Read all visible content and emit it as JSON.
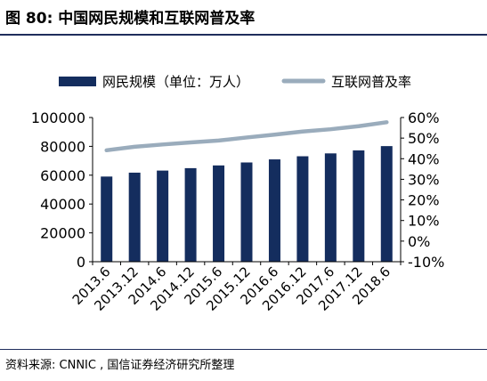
{
  "figure_title": "图 80:  中国网民规模和互联网普及率",
  "source": "资料来源: CNNIC  , 国信证券经济研究所整理",
  "colors": {
    "bar": "#142d5e",
    "line": "#9aacbc",
    "rule": "#1f2d5c"
  },
  "chart_data": {
    "type": "bar",
    "categories": [
      "2013.6",
      "2013.12",
      "2014.6",
      "2014.12",
      "2015.6",
      "2015.12",
      "2016.6",
      "2016.12",
      "2017.6",
      "2017.12",
      "2018.6"
    ],
    "series": [
      {
        "name": "网民规模（单位：万人）",
        "type": "bar",
        "axis": "left",
        "values": [
          59056,
          61758,
          63200,
          64875,
          66769,
          68826,
          70958,
          73125,
          75116,
          77198,
          80166
        ]
      },
      {
        "name": "互联网普及率",
        "type": "line",
        "axis": "right",
        "values": [
          44.1,
          45.8,
          46.9,
          47.9,
          48.8,
          50.3,
          51.7,
          53.2,
          54.3,
          55.8,
          57.7
        ]
      }
    ],
    "y_left": {
      "ylim": [
        0,
        100000
      ],
      "ticks": [
        "0",
        "20000",
        "40000",
        "60000",
        "80000",
        "100000"
      ]
    },
    "y_right": {
      "ylim": [
        -10,
        60
      ],
      "ticks": [
        "-10%",
        "0%",
        "10%",
        "20%",
        "30%",
        "40%",
        "50%",
        "60%"
      ]
    },
    "legend_position": "top",
    "grid": false
  }
}
